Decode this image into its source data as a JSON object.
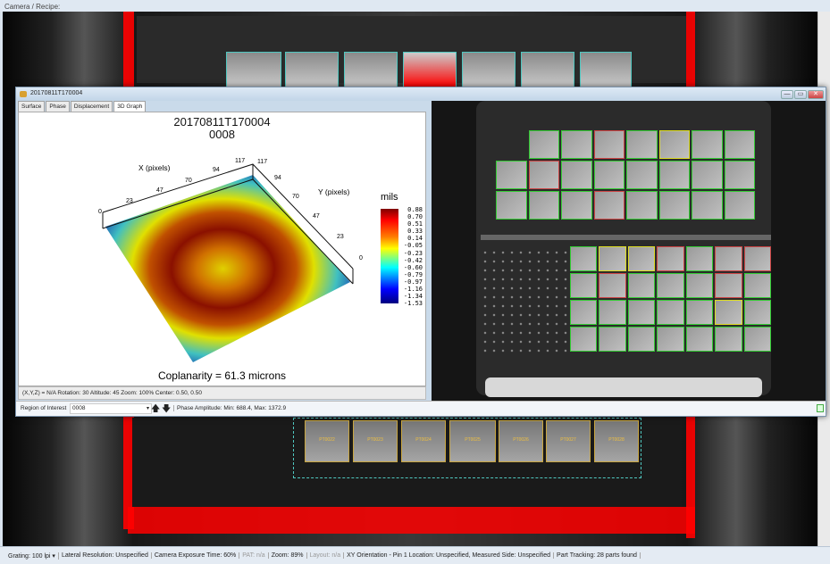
{
  "app": {
    "title": "Camera / Recipe:"
  },
  "camera": {
    "bottom_part_labels": [
      "PT0022",
      "PT0023",
      "PT0024",
      "PT0025",
      "PT0026",
      "PT0027",
      "PT0028"
    ]
  },
  "window": {
    "title": "20170811T170004",
    "controls": {
      "minimize": "—",
      "maximize": "▭",
      "close": "✕"
    },
    "tabs": [
      {
        "label": "Surface"
      },
      {
        "label": "Phase"
      },
      {
        "label": "Displacement"
      },
      {
        "label": "3D Graph",
        "active": true
      }
    ],
    "graph": {
      "title": "20170811T170004",
      "subtitle": "0008",
      "x_axis_label": "X (pixels)",
      "y_axis_label": "Y (pixels)",
      "x_ticks": [
        "0",
        "23",
        "47",
        "70",
        "94",
        "117"
      ],
      "y_ticks": [
        "117",
        "94",
        "70",
        "47",
        "23",
        "0"
      ],
      "colorbar_title": "mils",
      "colorbar_ticks": [
        "0.88",
        "0.70",
        "0.51",
        "0.33",
        "0.14",
        "-0.05",
        "-0.23",
        "-0.42",
        "-0.60",
        "-0.79",
        "-0.97",
        "-1.16",
        "-1.34",
        "-1.53"
      ],
      "colors": [
        "#7f0000",
        "#ff0000",
        "#ff8000",
        "#ffff00",
        "#00ffff",
        "#0000ff",
        "#00007f"
      ],
      "footer": "Coplanarity = 61.3 microns"
    },
    "info_line": "(X,Y,Z) = N/A  Rotation: 30 Altitude: 45  Zoom: 100%  Center: 0.50, 0.50",
    "toolbar": {
      "roi_label": "Region of Interest",
      "roi_value": "0008",
      "up": "🡅",
      "down": "🡇",
      "phase_amplitude": "Phase Amplitude: Min: 688.4, Max: 1372.9"
    }
  },
  "status": {
    "grating": "Grating: 100 lpi",
    "lateral": "Lateral Resolution: Unspecified",
    "exposure": "Camera Exposure Time: 60%",
    "pat": "PAT: n/a",
    "zoom": "Zoom: 89%",
    "layout": "Layout: n/a",
    "orientation": "XY Orientation - Pin 1 Location: Unspecified,  Measured Side: Unspecified",
    "tracking": "Part Tracking: 28 parts found"
  }
}
